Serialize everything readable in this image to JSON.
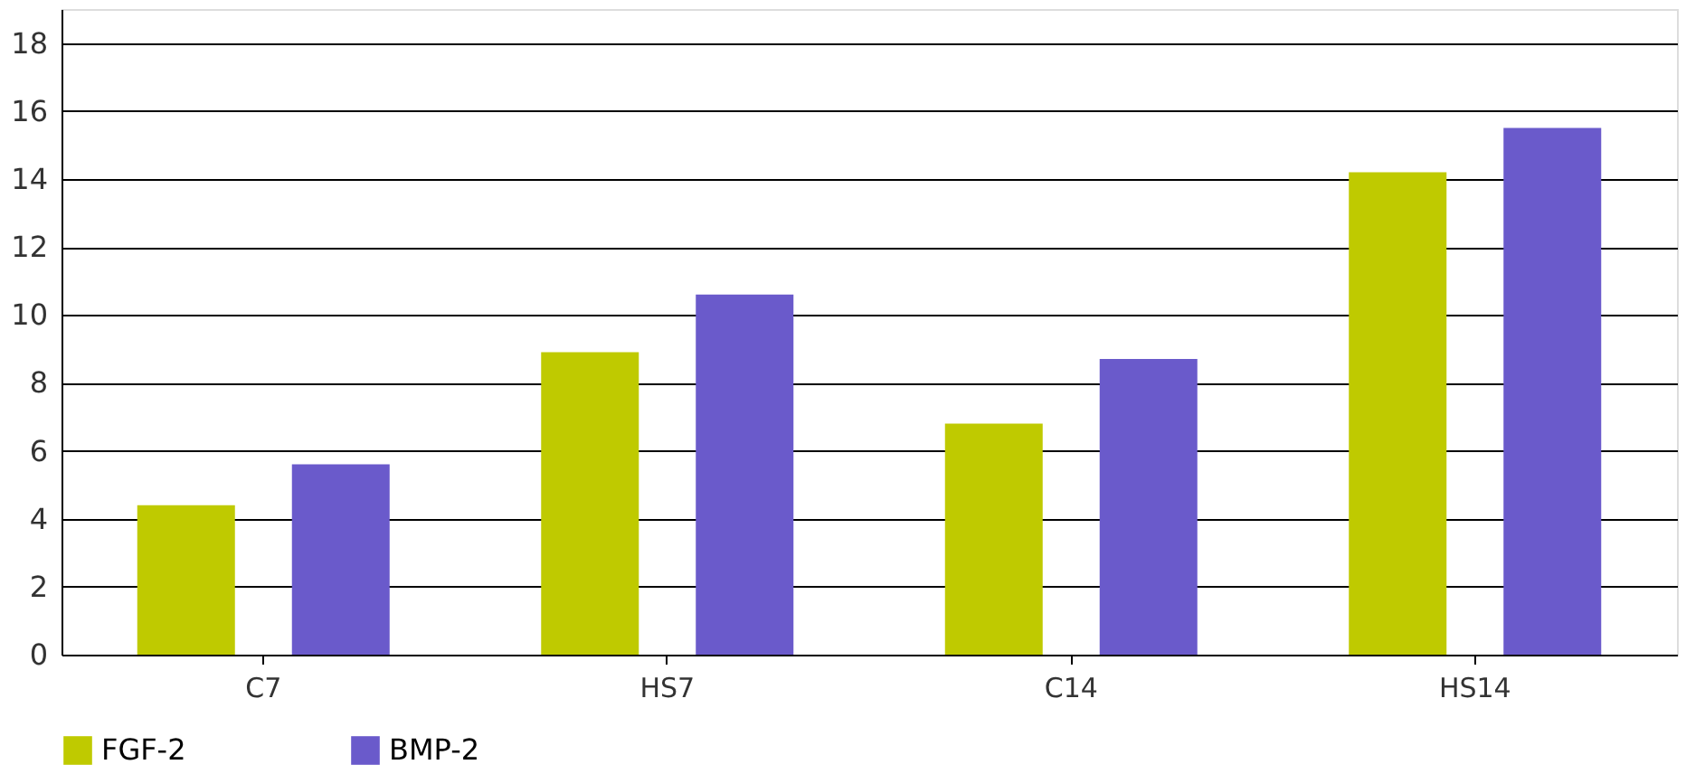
{
  "chart_data": {
    "type": "bar",
    "categories": [
      "C7",
      "HS7",
      "C14",
      "HS14"
    ],
    "series": [
      {
        "name": "FGF-2",
        "color": "#bfca00",
        "values": [
          4.4,
          8.9,
          6.8,
          14.2
        ]
      },
      {
        "name": "BMP-2",
        "color": "#6a5acb",
        "values": [
          5.6,
          10.6,
          8.7,
          15.5
        ]
      }
    ],
    "ylim": [
      0,
      19
    ],
    "yticks": [
      0,
      2,
      4,
      6,
      8,
      10,
      12,
      14,
      16,
      18
    ],
    "grid": "y",
    "legend": "bottom"
  }
}
